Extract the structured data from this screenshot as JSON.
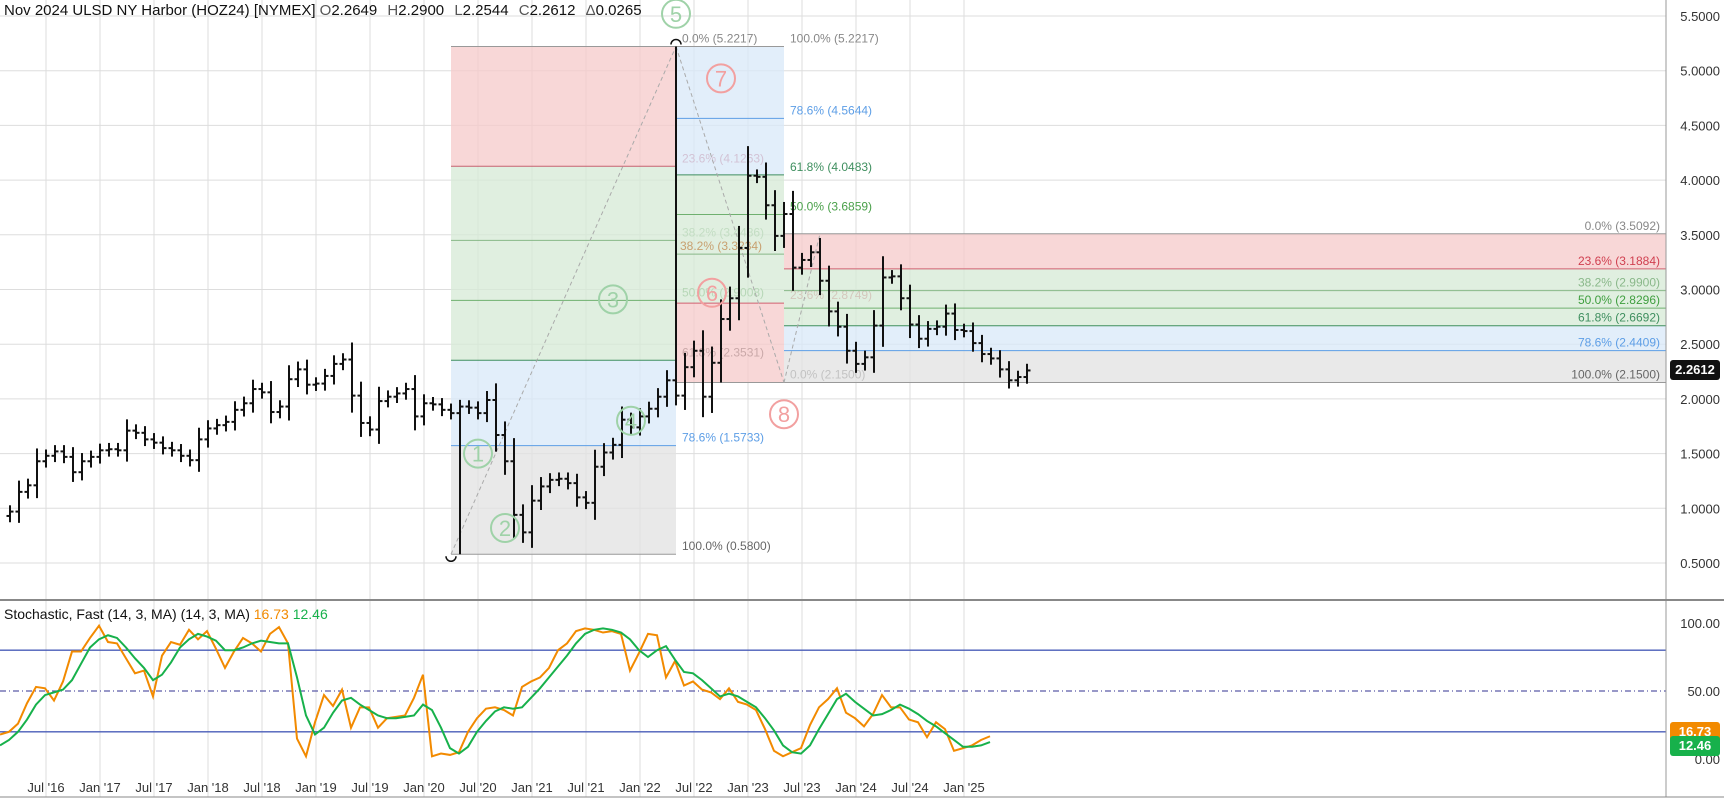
{
  "header": {
    "instrument": "Nov 2024 ULSD NY Harbor (HOZ24) [NYMEX]",
    "o_label": "O",
    "o_value": "2.2649",
    "h_label": "H",
    "h_value": "2.2900",
    "l_label": "L",
    "l_value": "2.2544",
    "c_label": "C",
    "c_value": "2.2612",
    "d_label": "Δ",
    "d_value": "0.0265"
  },
  "price_tag": "2.2612",
  "stochastic": {
    "label": "Stochastic, Fast (14, 3, MA)",
    "params": "(14, 3, MA)",
    "k_value": "16.73",
    "d_value": "12.46",
    "k_color": "#f28a00",
    "d_color": "#17b14b",
    "tag_k": "16.73",
    "tag_d": "12.46"
  },
  "colors": {
    "bars": "#111111",
    "fib_red": "#f6caca",
    "fib_green": "#d6ead6",
    "fib_blue": "#d8e8f8",
    "fib_grey": "#e2e2e2",
    "wave": "#9fd2a8",
    "wave_red": "#f2a0a0"
  },
  "chart_data": [
    {
      "type": "ohlc",
      "title": "Nov 2024 ULSD NY Harbor (HOZ24) [NYMEX]",
      "x_tick_labels": [
        "16",
        "Jul '16",
        "Jan '17",
        "Jul '17",
        "Jan '18",
        "Jul '18",
        "Jan '19",
        "Jul '19",
        "Jan '20",
        "Jul '20",
        "Jan '21",
        "Jul '21",
        "Jan '22",
        "Jul '22",
        "Jan '23",
        "Jul '23",
        "Jan '24",
        "Jul '24",
        "Jan '25"
      ],
      "y_tick_labels": [
        "5.5000",
        "5.0000",
        "4.5000",
        "4.0000",
        "3.5000",
        "3.0000",
        "2.5000",
        "2.0000",
        "1.5000",
        "1.0000",
        "0.5000"
      ],
      "ylim": [
        0.44,
        5.5
      ],
      "monthly_close": [
        0.97,
        1.15,
        1.21,
        1.43,
        1.48,
        1.52,
        1.47,
        1.33,
        1.43,
        1.47,
        1.53,
        1.54,
        1.53,
        1.71,
        1.69,
        1.63,
        1.6,
        1.55,
        1.53,
        1.48,
        1.44,
        1.63,
        1.73,
        1.76,
        1.79,
        1.9,
        1.96,
        2.09,
        2.06,
        1.88,
        1.93,
        2.18,
        2.27,
        2.13,
        2.14,
        2.21,
        2.32,
        2.36,
        2.03,
        1.78,
        1.72,
        1.98,
        2.02,
        2.05,
        2.09,
        1.84,
        1.96,
        1.95,
        1.9,
        1.87,
        1.93,
        1.92,
        1.87,
        1.99,
        1.67,
        1.43,
        0.94,
        0.78,
        1.07,
        1.2,
        1.26,
        1.27,
        1.23,
        1.1,
        1.05,
        1.38,
        1.51,
        1.58,
        1.81,
        1.74,
        1.84,
        1.91,
        2.02,
        2.17,
        2.03,
        2.29,
        2.44,
        2.02,
        2.33,
        2.73,
        2.92,
        3.38,
        4.04,
        4.03,
        3.77,
        3.49,
        3.69,
        3.2,
        3.27,
        3.34,
        3.08,
        2.8,
        2.66,
        2.44,
        2.32,
        2.38,
        2.67,
        3.11,
        3.12,
        2.92,
        2.68,
        2.55,
        2.64,
        2.66,
        2.78,
        2.63,
        2.62,
        2.51,
        2.41,
        2.37,
        2.27,
        2.17,
        2.2,
        2.26
      ],
      "fibonacci": [
        {
          "name": "retracement 2020-2022",
          "levels": [
            {
              "label": "0.0% (5.2217)",
              "price": 5.2217
            },
            {
              "label": "23.6% (4.1263)",
              "price": 4.1263
            },
            {
              "label": "38.2% (3.4486)",
              "price": 3.4486
            },
            {
              "label": "50.0% (2.9008)",
              "price": 2.9008
            },
            {
              "label": "61.8% (2.3531)",
              "price": 2.3531
            },
            {
              "label": "78.6% (1.5733)",
              "price": 1.5733
            },
            {
              "label": "100.0% (0.5800)",
              "price": 0.58
            }
          ]
        },
        {
          "name": "retracement 2022-2023",
          "levels": [
            {
              "label": "100.0% (5.2217)",
              "price": 5.2217
            },
            {
              "label": "78.6% (4.5644)",
              "price": 4.5644
            },
            {
              "label": "61.8% (4.0483)",
              "price": 4.0483
            },
            {
              "label": "50.0% (3.6859)",
              "price": 3.6859
            },
            {
              "label": "38.2% (3.3234)",
              "price": 3.3234
            },
            {
              "label": "23.6% (2.8749)",
              "price": 2.8749
            },
            {
              "label": "0.0% (2.1500)",
              "price": 2.15
            }
          ]
        },
        {
          "name": "retracement 2023-2024",
          "levels": [
            {
              "label": "0.0% (3.5092)",
              "price": 3.5092
            },
            {
              "label": "23.6% (3.1884)",
              "price": 3.1884
            },
            {
              "label": "38.2% (2.9900)",
              "price": 2.99
            },
            {
              "label": "50.0% (2.8296)",
              "price": 2.8296
            },
            {
              "label": "61.8% (2.6692)",
              "price": 2.6692
            },
            {
              "label": "78.6% (2.4409)",
              "price": 2.4409
            },
            {
              "label": "100.0% (2.1500)",
              "price": 2.15
            }
          ]
        }
      ],
      "wave_labels": [
        {
          "label": "1",
          "date": "2020-07",
          "price": 1.5
        },
        {
          "label": "2",
          "date": "2020-10",
          "price": 0.82
        },
        {
          "label": "3",
          "date": "2021-10",
          "price": 2.91
        },
        {
          "label": "4",
          "date": "2021-12",
          "price": 1.8
        },
        {
          "label": "5",
          "date": "2022-05",
          "price": 5.52
        },
        {
          "label": "6",
          "date": "2022-09",
          "price": 2.97
        },
        {
          "label": "7",
          "date": "2022-10",
          "price": 4.93
        },
        {
          "label": "8",
          "date": "2023-05",
          "price": 1.86
        }
      ]
    },
    {
      "type": "line",
      "title": "Stochastic, Fast (14, 3, MA)",
      "ylim": [
        -5,
        105
      ],
      "y_tick_labels": [
        "100.00",
        "50.00",
        "0.00"
      ],
      "reference_lines": [
        80,
        50,
        20
      ],
      "series": [
        {
          "name": "16.73",
          "color": "#f28a00",
          "values": [
            18,
            20,
            26,
            41,
            53,
            52,
            43,
            57,
            79,
            79,
            89,
            98,
            86,
            85,
            74,
            63,
            65,
            46,
            76,
            86,
            84,
            95,
            88,
            94,
            81,
            67,
            79,
            89,
            85,
            79,
            92,
            97,
            85,
            15,
            2,
            27,
            47,
            39,
            51,
            23,
            38,
            38,
            23,
            30,
            31,
            32,
            45,
            62,
            2,
            4,
            3,
            5,
            20,
            30,
            37,
            38,
            36,
            32,
            53,
            57,
            60,
            67,
            80,
            85,
            94,
            96,
            95,
            93,
            94,
            92,
            65,
            78,
            92,
            91,
            60,
            72,
            54,
            57,
            51,
            49,
            44,
            52,
            42,
            40,
            36,
            22,
            6,
            2,
            5,
            8,
            25,
            38,
            44,
            52,
            34,
            30,
            24,
            33,
            47,
            38,
            38,
            29,
            27,
            16,
            27,
            22,
            6,
            8,
            10,
            14,
            16.73
          ]
        },
        {
          "name": "12.46",
          "color": "#17b14b",
          "values": [
            10,
            14,
            20,
            29,
            40,
            47,
            49,
            51,
            58,
            70,
            82,
            88,
            91,
            89,
            82,
            74,
            67,
            58,
            62,
            71,
            82,
            88,
            92,
            90,
            87,
            80,
            80,
            82,
            85,
            87,
            86,
            85,
            85,
            60,
            32,
            18,
            23,
            34,
            43,
            45,
            40,
            36,
            32,
            30,
            30,
            31,
            32,
            40,
            36,
            23,
            8,
            4,
            9,
            20,
            28,
            35,
            38,
            37,
            38,
            45,
            52,
            60,
            68,
            76,
            85,
            92,
            95,
            96,
            95,
            93,
            88,
            80,
            75,
            80,
            83,
            73,
            64,
            63,
            58,
            52,
            46,
            48,
            46,
            42,
            38,
            30,
            21,
            10,
            5,
            4,
            10,
            22,
            33,
            44,
            48,
            42,
            37,
            32,
            33,
            36,
            40,
            37,
            33,
            28,
            24,
            19,
            14,
            9,
            9,
            10,
            12.46
          ]
        }
      ]
    }
  ]
}
